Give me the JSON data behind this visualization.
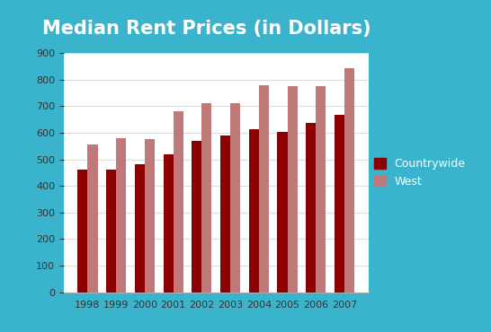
{
  "title": "Median Rent Prices (in Dollars)",
  "years": [
    1998,
    1999,
    2000,
    2001,
    2002,
    2003,
    2004,
    2005,
    2006,
    2007
  ],
  "countrywide": [
    462,
    462,
    481,
    520,
    568,
    591,
    615,
    602,
    638,
    668
  ],
  "west": [
    555,
    580,
    578,
    680,
    710,
    713,
    780,
    775,
    775,
    843
  ],
  "countrywide_color": "#8B0000",
  "west_color": "#C07878",
  "background_outer": "#3ab4cc",
  "background_inner": "#ffffff",
  "ylim": [
    0,
    900
  ],
  "yticks": [
    0,
    100,
    200,
    300,
    400,
    500,
    600,
    700,
    800,
    900
  ],
  "title_color": "#ffffff",
  "title_fontsize": 15,
  "legend_countrywide": "Countrywide",
  "legend_west": "West",
  "bar_width": 0.35,
  "grid_color": "#dddddd",
  "tick_color": "#333333"
}
